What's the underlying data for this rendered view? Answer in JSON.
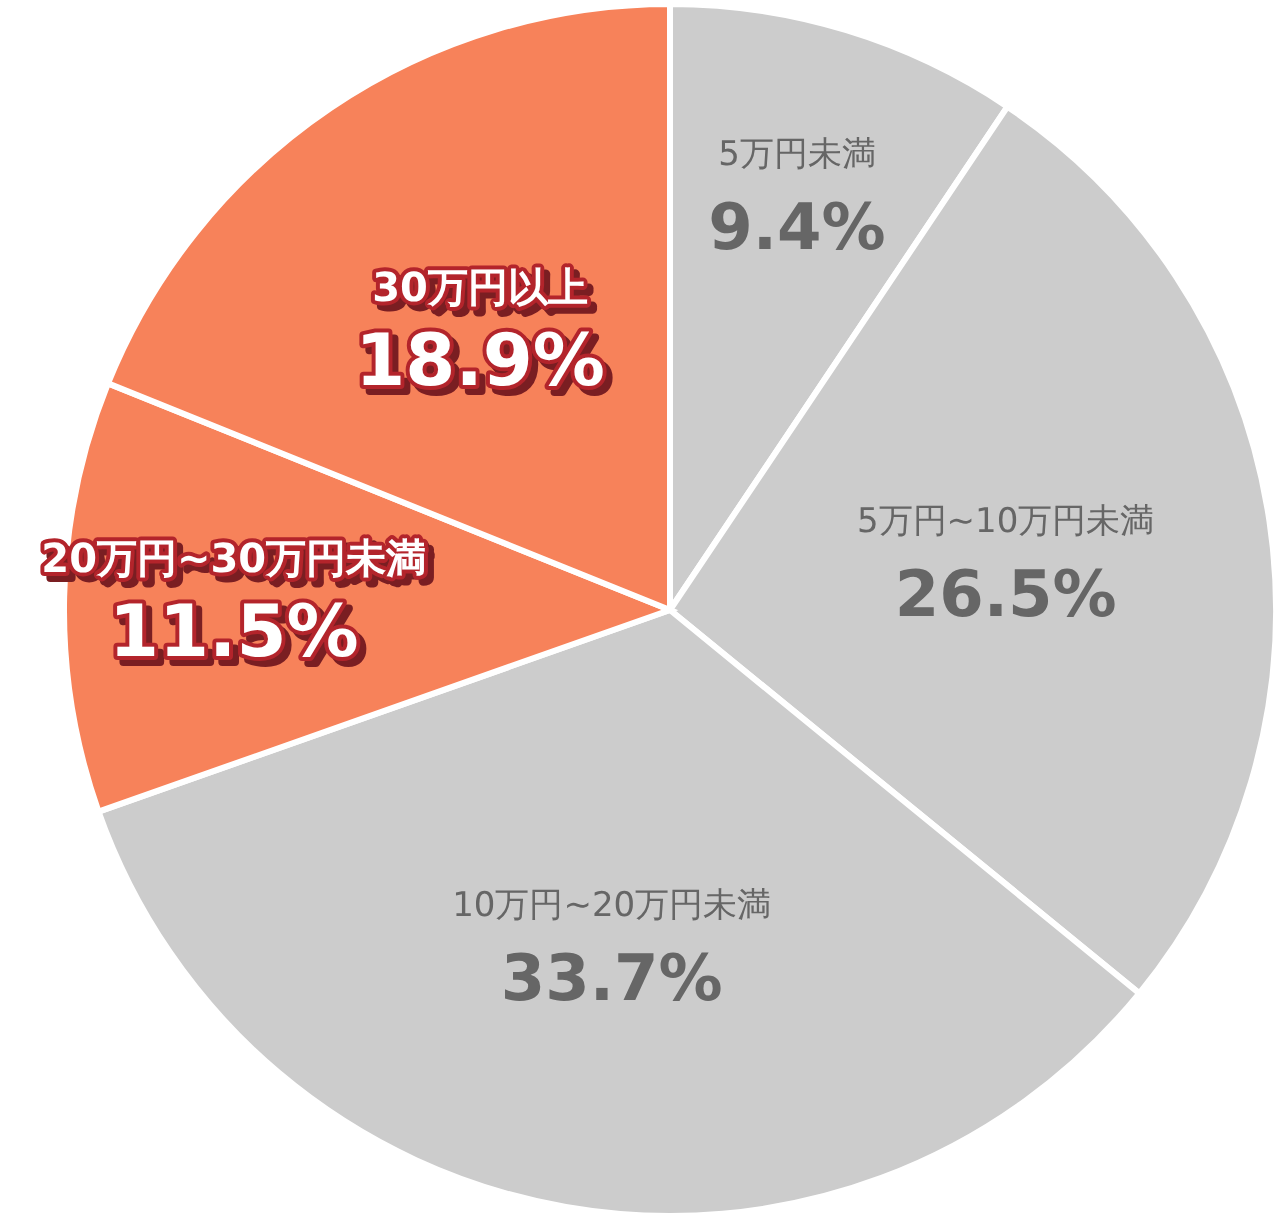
{
  "chart_data": {
    "type": "pie",
    "categories": [
      "5万円未満",
      "5万円~10万円未満",
      "10万円~20万円未満",
      "20万円~30万円未満",
      "30万円以上"
    ],
    "values": [
      9.4,
      26.5,
      33.7,
      11.5,
      18.9
    ],
    "colors": [
      "#cccccc",
      "#cccccc",
      "#cccccc",
      "#f7825a",
      "#f7825a"
    ],
    "value_labels": [
      "9.4%",
      "26.5%",
      "33.7%",
      "11.5%",
      "18.9%"
    ]
  }
}
